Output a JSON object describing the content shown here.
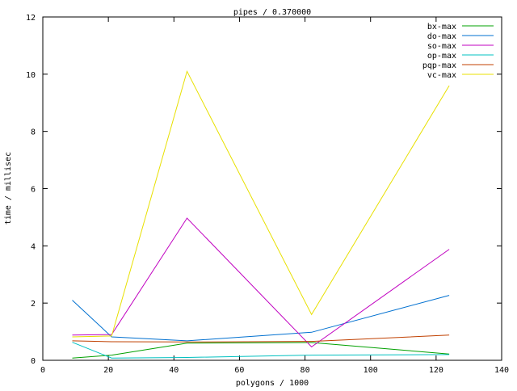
{
  "chart_data": {
    "type": "line",
    "title": "pipes / 0.370000",
    "xlabel": "polygons / 1000",
    "ylabel": "time / millisec",
    "xlim": [
      0,
      140
    ],
    "ylim": [
      0,
      12
    ],
    "xticks": [
      0,
      20,
      40,
      60,
      80,
      100,
      120,
      140
    ],
    "yticks": [
      0,
      2,
      4,
      6,
      8,
      10,
      12
    ],
    "grid": false,
    "legend_position": "top-right",
    "x": [
      9,
      21,
      44,
      82,
      124
    ],
    "series": [
      {
        "name": "bx-max",
        "color": "#00a000",
        "values": [
          0.08,
          0.18,
          0.6,
          0.62,
          0.22
        ]
      },
      {
        "name": "do-max",
        "color": "#0070d0",
        "values": [
          2.1,
          0.82,
          0.68,
          0.98,
          2.27
        ]
      },
      {
        "name": "so-max",
        "color": "#c000c0",
        "values": [
          0.88,
          0.9,
          4.97,
          0.47,
          3.88
        ]
      },
      {
        "name": "op-max",
        "color": "#00c0c0",
        "values": [
          0.63,
          0.08,
          0.1,
          0.18,
          0.2
        ]
      },
      {
        "name": "pqp-max",
        "color": "#c04000",
        "values": [
          0.68,
          0.65,
          0.64,
          0.66,
          0.88
        ]
      },
      {
        "name": "vc-max",
        "color": "#e8e000",
        "values": [
          0.82,
          0.85,
          10.1,
          1.6,
          9.6
        ]
      }
    ]
  }
}
